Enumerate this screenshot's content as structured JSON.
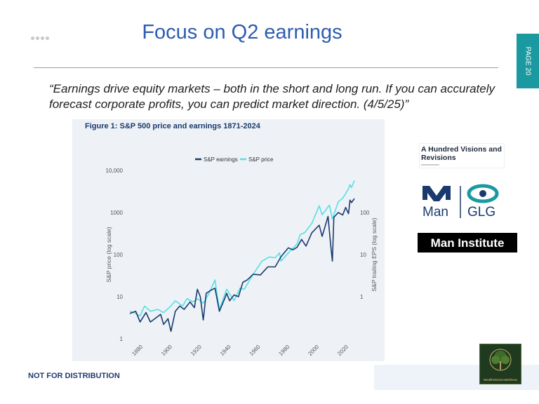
{
  "header": {
    "title": "Focus on Q2 earnings",
    "page_label": "PAGE 20"
  },
  "quote": "“Earnings drive equity markets – both in the short and long run. If you can accurately forecast corporate profits, you can predict market direction. (4/5/25)”",
  "figure": {
    "title": "Figure 1: S&P 500 price and earnings 1871-2024"
  },
  "chart_data": {
    "type": "line",
    "title": "Figure 1: S&P 500 price and earnings 1871-2024",
    "xlabel": "",
    "ylabel_left": "S&P price (log scale)",
    "ylabel_right": "S&P trailing EPS (log scale)",
    "xlim": [
      1871,
      2024
    ],
    "ylim_left": [
      1,
      10000
    ],
    "ylim_right": [
      0.1,
      1000
    ],
    "y_scale": "log",
    "x_ticks": [
      "1880",
      "1900",
      "1920",
      "1940",
      "1960",
      "1980",
      "2000",
      "2020"
    ],
    "y_left_ticks": [
      "10,000",
      "1000",
      "100",
      "10",
      "1"
    ],
    "y_right_ticks": [
      "100",
      "10",
      "1"
    ],
    "legend": "top-center",
    "series": [
      {
        "name": "S&P earnings",
        "color": "#1a3a6e",
        "axis": "right",
        "points": [
          [
            1871,
            0.4
          ],
          [
            1875,
            0.45
          ],
          [
            1878,
            0.25
          ],
          [
            1882,
            0.42
          ],
          [
            1885,
            0.25
          ],
          [
            1888,
            0.3
          ],
          [
            1892,
            0.38
          ],
          [
            1894,
            0.22
          ],
          [
            1897,
            0.3
          ],
          [
            1899,
            0.15
          ],
          [
            1902,
            0.45
          ],
          [
            1905,
            0.6
          ],
          [
            1908,
            0.5
          ],
          [
            1912,
            0.75
          ],
          [
            1915,
            0.55
          ],
          [
            1917,
            1.5
          ],
          [
            1919,
            1.0
          ],
          [
            1921,
            0.28
          ],
          [
            1923,
            1.2
          ],
          [
            1926,
            1.4
          ],
          [
            1929,
            1.6
          ],
          [
            1932,
            0.45
          ],
          [
            1935,
            0.8
          ],
          [
            1937,
            1.2
          ],
          [
            1939,
            0.8
          ],
          [
            1942,
            1.1
          ],
          [
            1945,
            1.0
          ],
          [
            1948,
            2.2
          ],
          [
            1951,
            2.5
          ],
          [
            1955,
            3.4
          ],
          [
            1960,
            3.3
          ],
          [
            1965,
            5.1
          ],
          [
            1970,
            5.1
          ],
          [
            1974,
            8.9
          ],
          [
            1979,
            14.5
          ],
          [
            1982,
            13.0
          ],
          [
            1985,
            15.0
          ],
          [
            1988,
            23.0
          ],
          [
            1991,
            16.0
          ],
          [
            1995,
            33.0
          ],
          [
            2000,
            50.0
          ],
          [
            2002,
            27.0
          ],
          [
            2006,
            81.0
          ],
          [
            2008,
            14.9
          ],
          [
            2009,
            7.0
          ],
          [
            2010,
            77.0
          ],
          [
            2013,
            100.0
          ],
          [
            2016,
            87.0
          ],
          [
            2018,
            132.0
          ],
          [
            2020,
            94.0
          ],
          [
            2021,
            197.0
          ],
          [
            2022,
            172.0
          ],
          [
            2024,
            215.0
          ]
        ]
      },
      {
        "name": "S&P price",
        "color": "#55e0e4",
        "axis": "left",
        "points": [
          [
            1871,
            4.5
          ],
          [
            1875,
            4.0
          ],
          [
            1878,
            3.5
          ],
          [
            1881,
            6.0
          ],
          [
            1885,
            4.5
          ],
          [
            1890,
            5.0
          ],
          [
            1894,
            4.2
          ],
          [
            1899,
            6.0
          ],
          [
            1902,
            8.0
          ],
          [
            1907,
            6.0
          ],
          [
            1910,
            9.0
          ],
          [
            1914,
            7.5
          ],
          [
            1917,
            9.0
          ],
          [
            1921,
            7.0
          ],
          [
            1925,
            12.0
          ],
          [
            1929,
            25.0
          ],
          [
            1932,
            5.0
          ],
          [
            1937,
            15.0
          ],
          [
            1942,
            8.0
          ],
          [
            1946,
            16.0
          ],
          [
            1949,
            15.0
          ],
          [
            1954,
            30.0
          ],
          [
            1961,
            70.0
          ],
          [
            1966,
            88.0
          ],
          [
            1970,
            84.0
          ],
          [
            1973,
            110.0
          ],
          [
            1974,
            70.0
          ],
          [
            1980,
            120.0
          ],
          [
            1985,
            180.0
          ],
          [
            1987,
            300.0
          ],
          [
            1990,
            330.0
          ],
          [
            1995,
            550.0
          ],
          [
            2000,
            1450.0
          ],
          [
            2002,
            880.0
          ],
          [
            2007,
            1500.0
          ],
          [
            2009,
            700.0
          ],
          [
            2013,
            1800.0
          ],
          [
            2016,
            2200.0
          ],
          [
            2018,
            2800.0
          ],
          [
            2020,
            3700.0
          ],
          [
            2021,
            4600.0
          ],
          [
            2022,
            3900.0
          ],
          [
            2024,
            5800.0
          ]
        ]
      }
    ]
  },
  "sidebar": {
    "book_title": "A Hundred Visions and Revisions",
    "man_glg_left": "Man",
    "man_glg_right": "GLG",
    "man_institute": "Man Institute"
  },
  "footer": {
    "notice": "NOT FOR DISTRIBUTION",
    "logo_caption": "WealthWisdomWellness"
  },
  "colors": {
    "title_blue": "#2d5cb1",
    "teal_tab": "#1a9aa0",
    "earnings": "#1a3a6e",
    "price": "#55e0e4"
  }
}
